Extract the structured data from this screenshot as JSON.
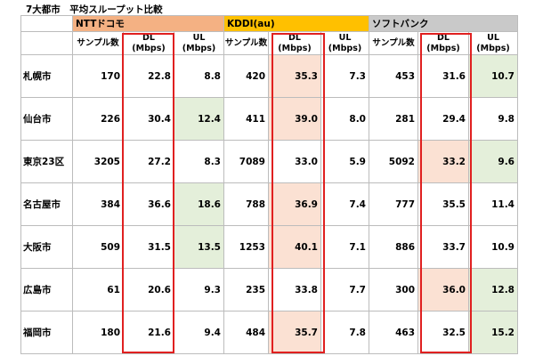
{
  "title": "7大都市　平均スループット比較",
  "carriers": [
    {
      "name": "NTTドコモ",
      "color": "#f4b183"
    },
    {
      "name": "KDDI(au)",
      "color": "#ffc000"
    },
    {
      "name": "ソフトバンク",
      "color": "#c9c9c9"
    }
  ],
  "col_headers": {
    "samples": "サンプル数",
    "dl": [
      "DL",
      "(Mbps)"
    ],
    "ul": [
      "UL",
      "(Mbps)"
    ]
  },
  "colors": {
    "highlight_pink": "#fbe1d3",
    "highlight_green": "#e4efda",
    "red_box": "#e02020"
  },
  "rows": [
    {
      "city": "札幌市",
      "docomo": [
        "170",
        "22.8",
        "8.8"
      ],
      "kddi": [
        "420",
        "35.3",
        "7.3"
      ],
      "softbank": [
        "453",
        "31.6",
        "10.7"
      ],
      "highlights": {
        "kddi_dl": "pink",
        "softbank_ul": "green"
      }
    },
    {
      "city": "仙台市",
      "docomo": [
        "226",
        "30.4",
        "12.4"
      ],
      "kddi": [
        "411",
        "39.0",
        "8.0"
      ],
      "softbank": [
        "281",
        "29.4",
        "9.8"
      ],
      "highlights": {
        "docomo_ul": "green",
        "kddi_dl": "pink"
      }
    },
    {
      "city": "東京23区",
      "docomo": [
        "3205",
        "27.2",
        "8.3"
      ],
      "kddi": [
        "7089",
        "33.0",
        "5.9"
      ],
      "softbank": [
        "5092",
        "33.2",
        "9.6"
      ],
      "highlights": {
        "softbank_dl": "pink",
        "softbank_ul": "green"
      }
    },
    {
      "city": "名古屋市",
      "docomo": [
        "384",
        "36.6",
        "18.6"
      ],
      "kddi": [
        "788",
        "36.9",
        "7.4"
      ],
      "softbank": [
        "777",
        "35.5",
        "11.4"
      ],
      "highlights": {
        "docomo_ul": "green",
        "kddi_dl": "pink"
      }
    },
    {
      "city": "大阪市",
      "docomo": [
        "509",
        "31.5",
        "13.5"
      ],
      "kddi": [
        "1253",
        "40.1",
        "7.1"
      ],
      "softbank": [
        "886",
        "33.7",
        "10.9"
      ],
      "highlights": {
        "docomo_ul": "green",
        "kddi_dl": "pink"
      }
    },
    {
      "city": "広島市",
      "docomo": [
        "61",
        "20.6",
        "9.3"
      ],
      "kddi": [
        "235",
        "33.8",
        "7.7"
      ],
      "softbank": [
        "300",
        "36.0",
        "12.8"
      ],
      "highlights": {
        "softbank_dl": "pink",
        "softbank_ul": "green"
      }
    },
    {
      "city": "福岡市",
      "docomo": [
        "180",
        "21.6",
        "9.4"
      ],
      "kddi": [
        "484",
        "35.7",
        "7.8"
      ],
      "softbank": [
        "463",
        "32.5",
        "15.2"
      ],
      "highlights": {
        "kddi_dl": "pink",
        "softbank_ul": "green"
      }
    }
  ]
}
